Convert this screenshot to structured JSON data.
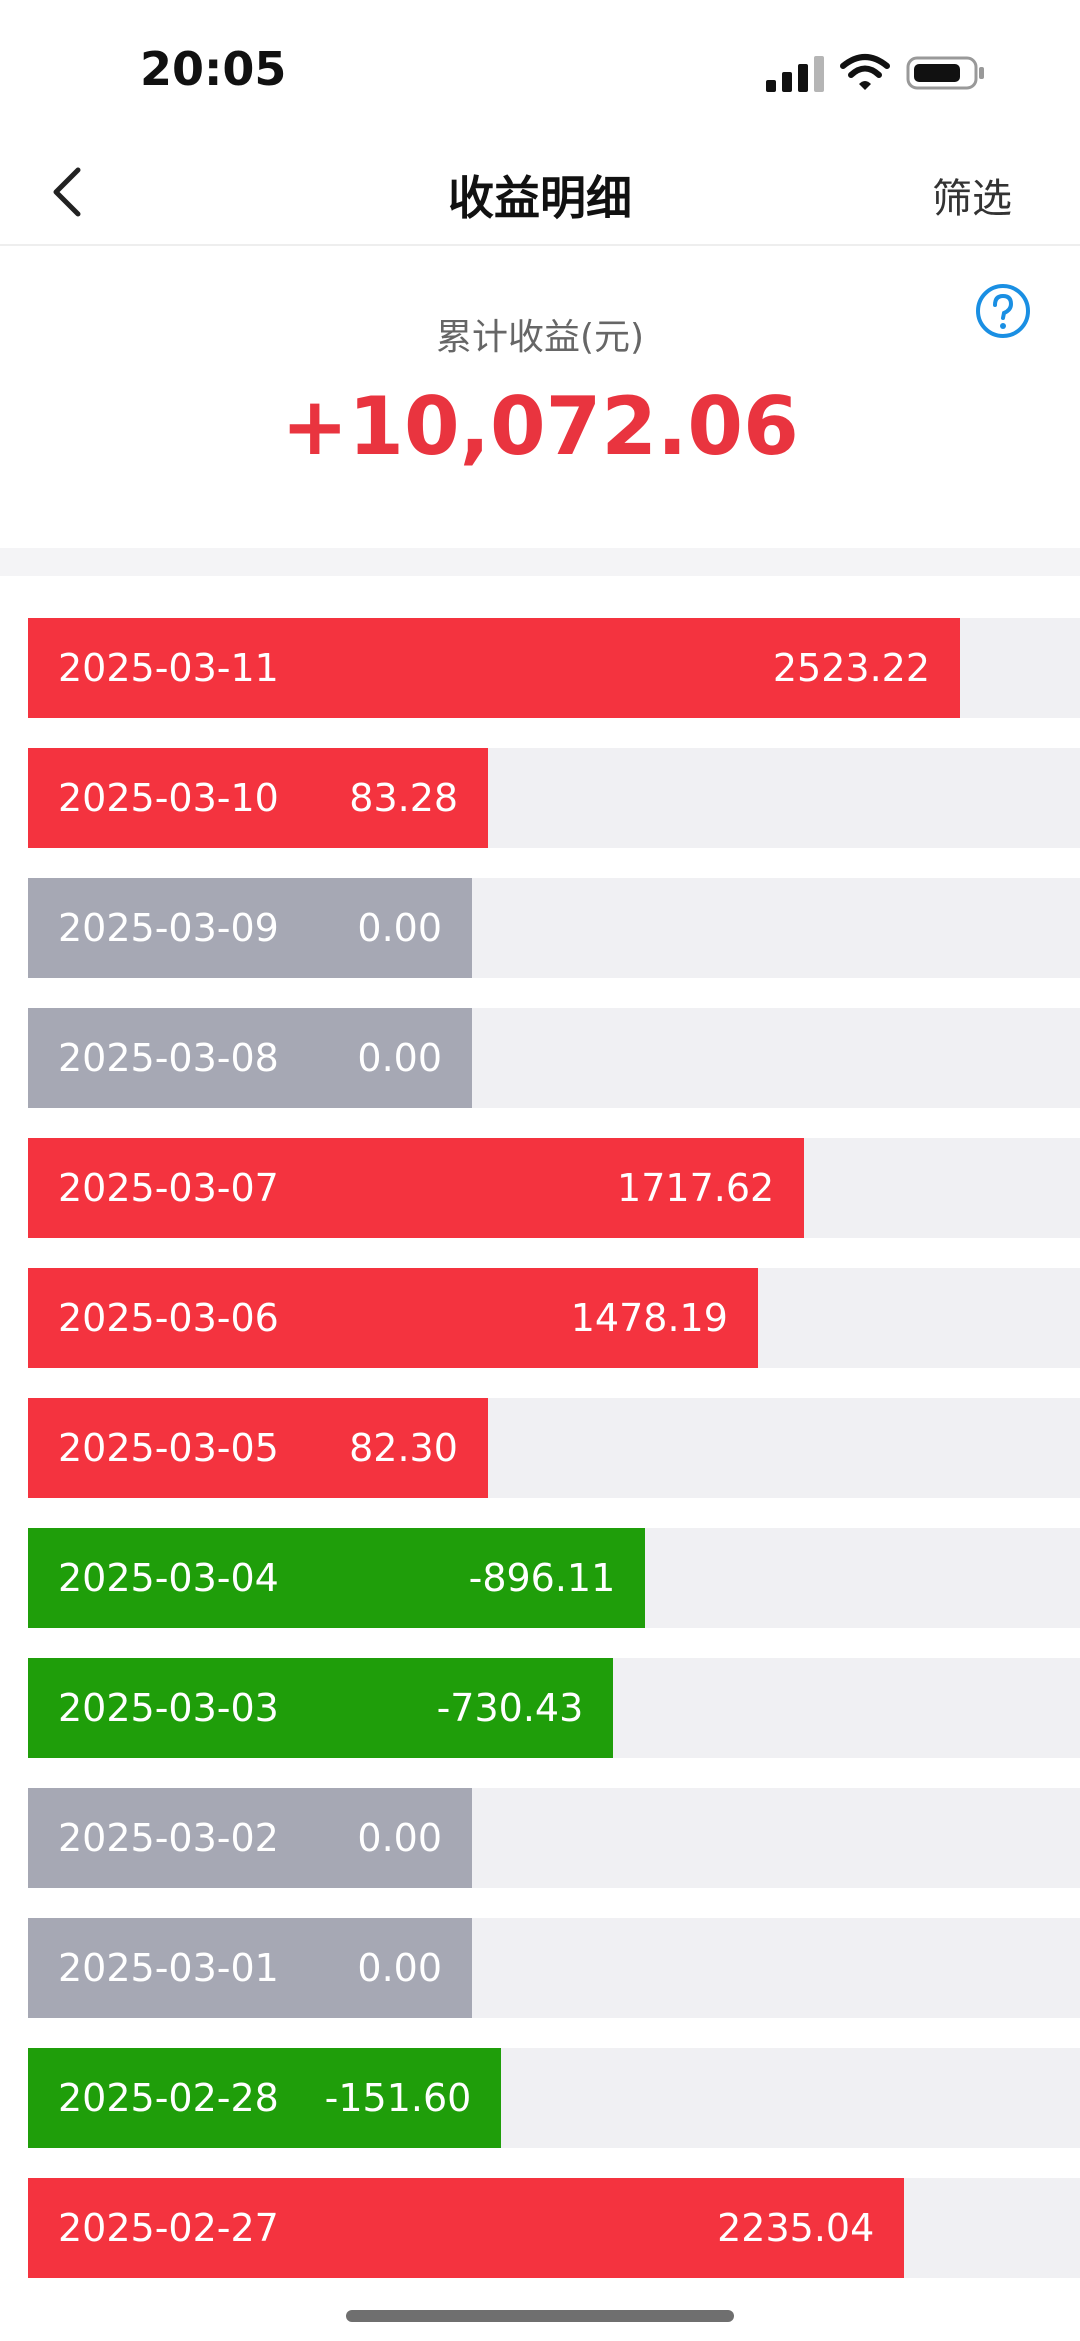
{
  "status_bar": {
    "time": "20:05"
  },
  "nav": {
    "title": "收益明细",
    "filter_label": "筛选"
  },
  "summary": {
    "label": "累计收益(元)",
    "value": "+10,072.06"
  },
  "colors": {
    "positive": "#f4333f",
    "negative": "#1f9e0a",
    "zero": "#a6a8b4",
    "track": "#f0f0f3"
  },
  "entries": [
    {
      "date": "2025-03-11",
      "value": "2523.22",
      "amount": 2523.22
    },
    {
      "date": "2025-03-10",
      "value": "83.28",
      "amount": 83.28
    },
    {
      "date": "2025-03-09",
      "value": "0.00",
      "amount": 0
    },
    {
      "date": "2025-03-08",
      "value": "0.00",
      "amount": 0
    },
    {
      "date": "2025-03-07",
      "value": "1717.62",
      "amount": 1717.62
    },
    {
      "date": "2025-03-06",
      "value": "1478.19",
      "amount": 1478.19
    },
    {
      "date": "2025-03-05",
      "value": "82.30",
      "amount": 82.3
    },
    {
      "date": "2025-03-04",
      "value": "-896.11",
      "amount": -896.11
    },
    {
      "date": "2025-03-03",
      "value": "-730.43",
      "amount": -730.43
    },
    {
      "date": "2025-03-02",
      "value": "0.00",
      "amount": 0
    },
    {
      "date": "2025-03-01",
      "value": "0.00",
      "amount": 0
    },
    {
      "date": "2025-02-28",
      "value": "-151.60",
      "amount": -151.6
    },
    {
      "date": "2025-02-27",
      "value": "2235.04",
      "amount": 2235.04
    }
  ]
}
